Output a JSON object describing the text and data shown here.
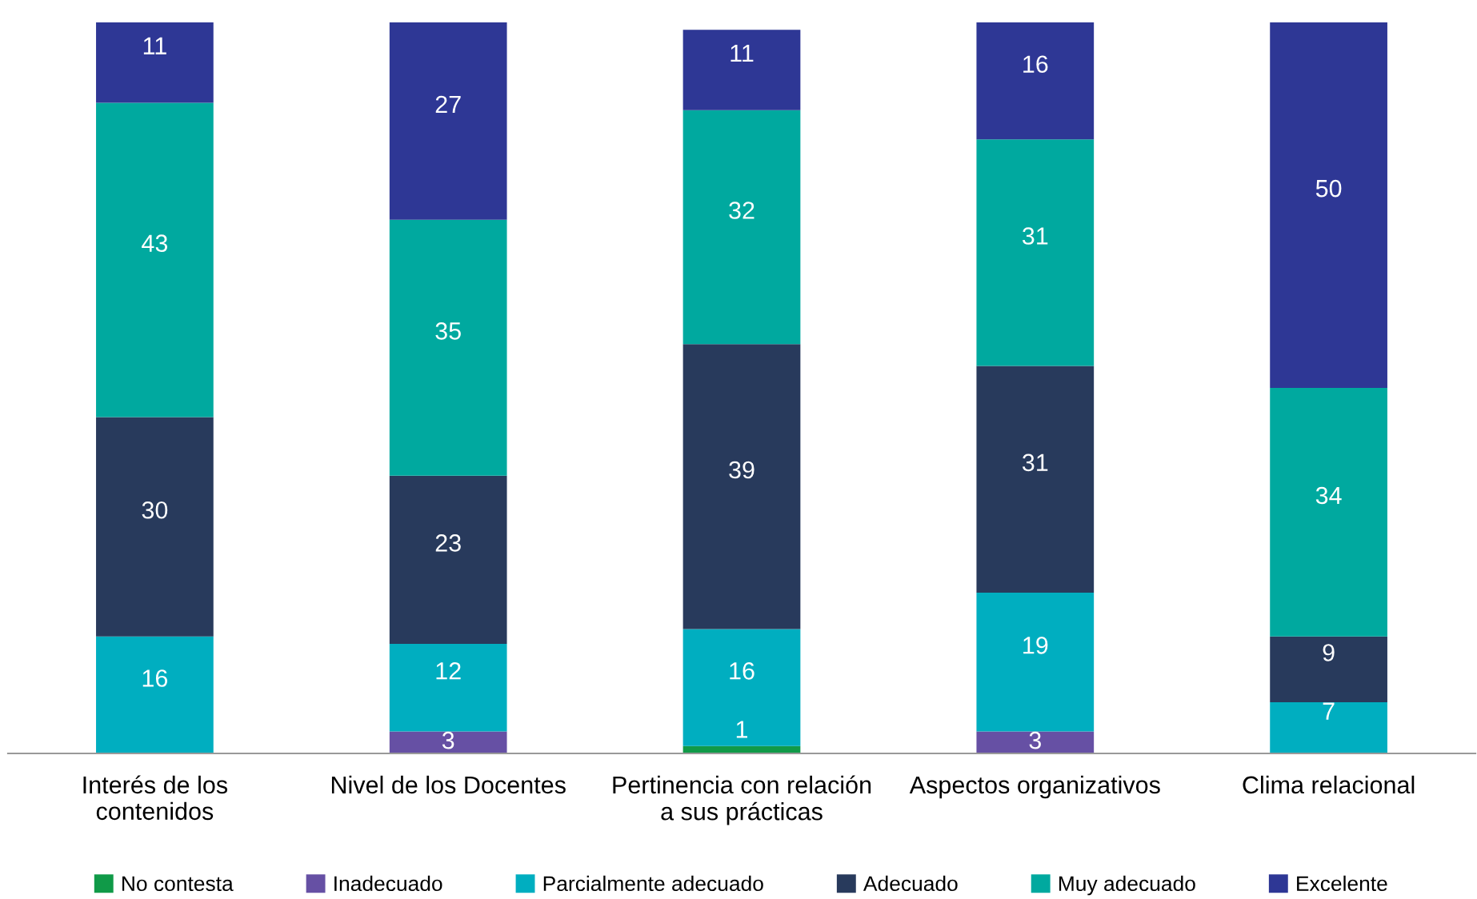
{
  "chart_data": {
    "type": "bar",
    "stacked": true,
    "categories": [
      "Interés de los\ncontenidos",
      "Nivel de los Docentes",
      "Pertinencia con relación\na sus prácticas",
      "Aspectos organizativos",
      "Clima relacional"
    ],
    "series": [
      {
        "name": "No contesta",
        "color": "#109a48",
        "values": [
          null,
          null,
          1,
          null,
          null
        ]
      },
      {
        "name": "Inadecuado",
        "color": "#6650a4",
        "values": [
          null,
          3,
          null,
          3,
          null
        ]
      },
      {
        "name": "Parcialmente adecuado",
        "color": "#00aec0",
        "values": [
          16,
          12,
          16,
          19,
          7
        ]
      },
      {
        "name": "Adecuado",
        "color": "#283a5c",
        "values": [
          30,
          23,
          39,
          31,
          9
        ]
      },
      {
        "name": "Muy adecuado",
        "color": "#00a99f",
        "values": [
          43,
          35,
          32,
          31,
          34
        ]
      },
      {
        "name": "Excelente",
        "color": "#2e3795",
        "values": [
          11,
          27,
          11,
          16,
          50
        ]
      }
    ],
    "ylim": [
      0,
      100
    ],
    "data_labels": true,
    "legend": "bottom",
    "grid": false,
    "tick_labels": "x"
  }
}
